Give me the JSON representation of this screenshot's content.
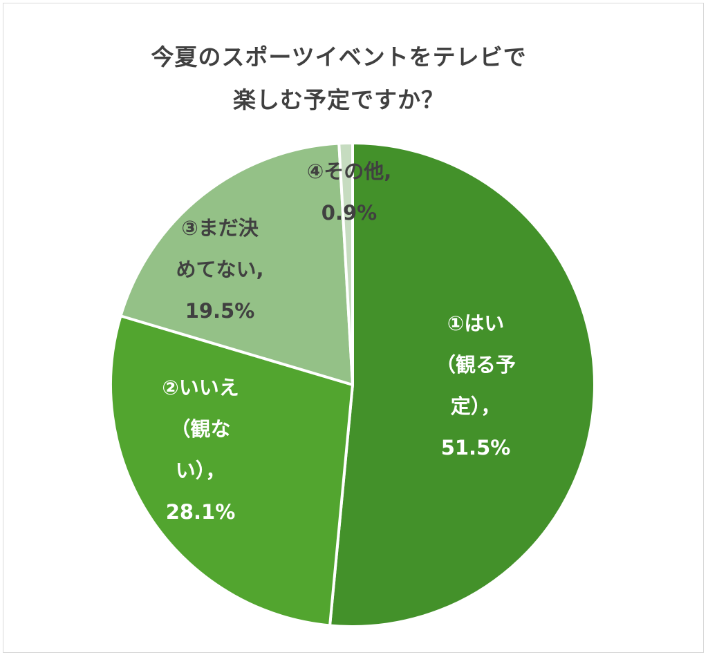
{
  "chart_data": {
    "type": "pie",
    "title_lines": [
      "今夏のスポーツイベントをテレビで",
      "楽しむ予定ですか？"
    ],
    "categories": [
      "①はい（観る予定）",
      "②いいえ（観ない）",
      "③まだ決めてない",
      "④その他"
    ],
    "values": [
      51.5,
      28.1,
      19.5,
      0.9
    ],
    "unit": "%",
    "colors": [
      "#43912a",
      "#52a52f",
      "#94c187",
      "#c6dcc0"
    ],
    "label_color_dark": "#404040",
    "label_color_light": "#ffffff",
    "slice_labels": [
      {
        "lines": [
          "①はい",
          "（観る予",
          "定），",
          "51.5%"
        ],
        "color": "#ffffff"
      },
      {
        "lines": [
          "②いいえ",
          "（観な",
          "い），",
          "28.1%"
        ],
        "color": "#ffffff"
      },
      {
        "lines": [
          "③まだ決",
          "めてない,",
          "19.5%"
        ],
        "color": "#404040"
      },
      {
        "lines": [
          "④その他,",
          "0.9%"
        ],
        "color": "#404040"
      }
    ],
    "legend": "none"
  }
}
